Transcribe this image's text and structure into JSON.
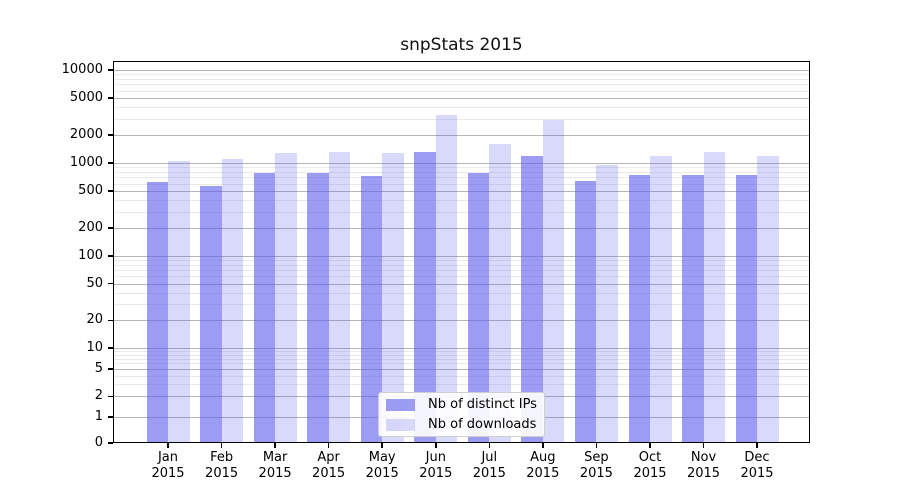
{
  "title": "snpStats 2015",
  "chart_data": {
    "type": "bar",
    "title": "snpStats 2015",
    "categories": [
      "Jan",
      "Feb",
      "Mar",
      "Apr",
      "May",
      "Jun",
      "Jul",
      "Aug",
      "Sep",
      "Oct",
      "Nov",
      "Dec"
    ],
    "category_year": "2015",
    "series": [
      {
        "name": "Nb of distinct IPs",
        "values": [
          630,
          560,
          780,
          790,
          730,
          1310,
          780,
          1190,
          640,
          740,
          740,
          740
        ],
        "color": "#6060ee",
        "opacity": 0.62
      },
      {
        "name": "Nb of downloads",
        "values": [
          1050,
          1100,
          1280,
          1310,
          1280,
          3300,
          1600,
          2900,
          950,
          1190,
          1310,
          1190
        ],
        "color": "#6060ee",
        "opacity": 0.24
      }
    ],
    "y_ticks": [
      0,
      1,
      2,
      5,
      10,
      20,
      50,
      100,
      200,
      500,
      1000,
      2000,
      5000,
      10000
    ],
    "y_scale": "symlog",
    "ylim": [
      0,
      13000
    ],
    "grid": "horizontal",
    "legend_position": "bottom-center"
  }
}
